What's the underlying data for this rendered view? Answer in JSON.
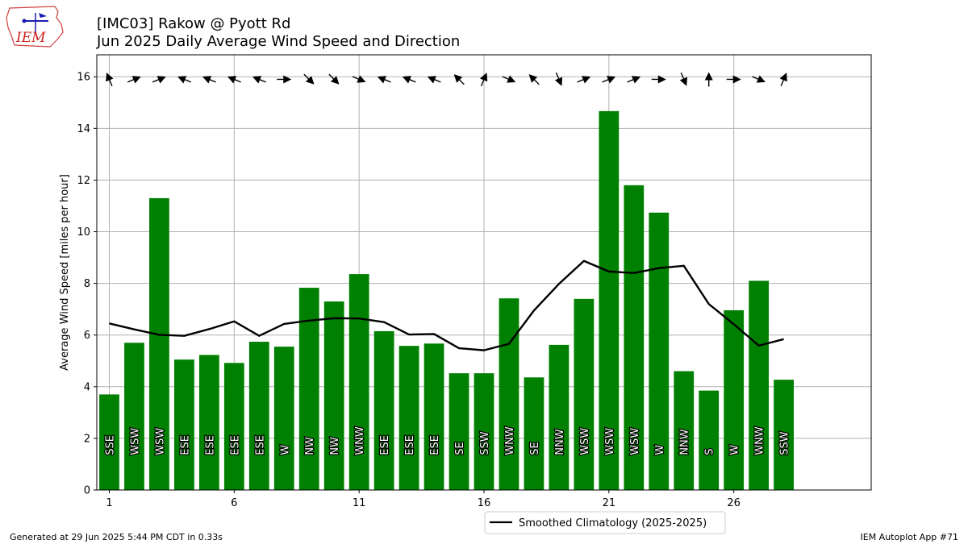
{
  "header": {
    "title_line1": "[IMC03] Rakow @ Pyott Rd",
    "title_line2": "Jun 2025 Daily Average Wind Speed and Direction"
  },
  "logo": {
    "text": "IEM",
    "icon": "iem-iowa-logo"
  },
  "footer": {
    "left": "Generated at 29 Jun 2025 5:44 PM CDT in 0.33s",
    "right": "IEM Autoplot App #71"
  },
  "colors": {
    "bar": "#008000",
    "climo_line": "#000000",
    "grid": "#b0b0b0"
  },
  "chart_data": {
    "type": "bar",
    "ylabel": "Average Wind Speed [miles per hour]",
    "xlabel": "",
    "xlim": [
      0.5,
      31.5
    ],
    "ylim": [
      0,
      16.85
    ],
    "xticks": [
      1,
      6,
      11,
      16,
      21,
      26
    ],
    "yticks": [
      0,
      2,
      4,
      6,
      8,
      10,
      12,
      14,
      16
    ],
    "grid": true,
    "legend_position": "bottom-center",
    "days": [
      1,
      2,
      3,
      4,
      5,
      6,
      7,
      8,
      9,
      10,
      11,
      12,
      13,
      14,
      15,
      16,
      17,
      18,
      19,
      20,
      21,
      22,
      23,
      24,
      25,
      26,
      27,
      28
    ],
    "values": [
      3.7,
      5.7,
      11.3,
      5.05,
      5.23,
      4.92,
      5.74,
      5.55,
      7.83,
      7.3,
      8.36,
      6.15,
      5.58,
      5.67,
      4.52,
      4.52,
      7.42,
      4.36,
      5.62,
      7.4,
      14.67,
      11.8,
      10.74,
      4.6,
      3.85,
      6.96,
      8.1,
      4.27
    ],
    "directions": [
      "SSE",
      "WSW",
      "WSW",
      "ESE",
      "ESE",
      "ESE",
      "ESE",
      "W",
      "NW",
      "NW",
      "WNW",
      "ESE",
      "ESE",
      "ESE",
      "SE",
      "SSW",
      "WNW",
      "SE",
      "NNW",
      "WSW",
      "WSW",
      "WSW",
      "W",
      "NNW",
      "S",
      "W",
      "WNW",
      "SSW"
    ],
    "series": [
      {
        "name": "Smoothed Climatology (2025-2025)",
        "type": "line",
        "values": [
          6.45,
          6.22,
          6.01,
          5.97,
          6.23,
          6.53,
          5.97,
          6.43,
          6.56,
          6.65,
          6.64,
          6.5,
          6.02,
          6.04,
          5.49,
          5.41,
          5.66,
          6.95,
          7.98,
          8.87,
          8.46,
          8.4,
          8.59,
          8.68,
          7.2,
          6.42,
          5.59,
          5.84
        ]
      }
    ]
  }
}
